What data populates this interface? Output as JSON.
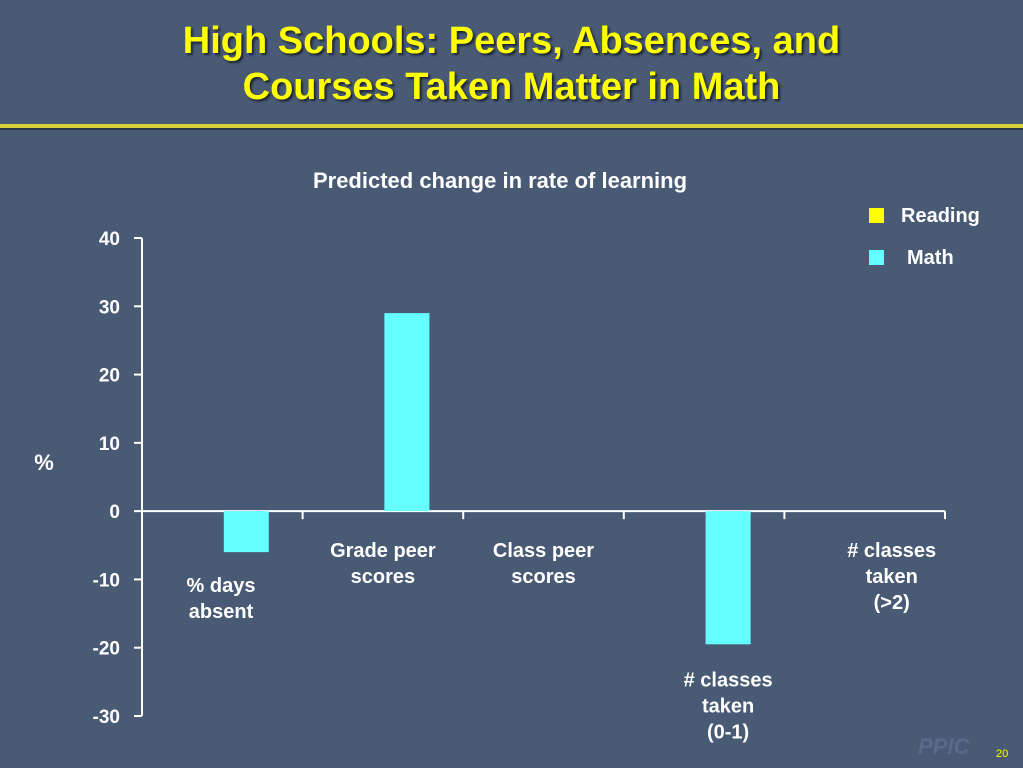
{
  "slide": {
    "title_line1": "High Schools:  Peers, Absences, and",
    "title_line2": "Courses Taken Matter in Math",
    "logo": "PPIC",
    "page_number": "20"
  },
  "colors": {
    "background": "#495a75",
    "title": "#ffff00",
    "reading": "#ffff00",
    "math": "#66ffff",
    "axis": "#ffffff"
  },
  "chart_data": {
    "type": "bar",
    "title": "Predicted change in rate of learning",
    "ylabel": "%",
    "xlabel": "",
    "ylim": [
      -30,
      40
    ],
    "yticks": [
      40,
      30,
      20,
      10,
      0,
      -10,
      -20,
      -30
    ],
    "categories": [
      [
        "% days",
        "absent"
      ],
      [
        "Grade peer",
        "scores"
      ],
      [
        "Class peer",
        "scores"
      ],
      [
        "# classes",
        "taken",
        "(0-1)"
      ],
      [
        "# classes",
        "taken",
        "(>2)"
      ]
    ],
    "series": [
      {
        "name": "Reading",
        "color": "#ffff00",
        "values": [
          null,
          null,
          null,
          null,
          null
        ]
      },
      {
        "name": "Math",
        "color": "#66ffff",
        "values": [
          -6,
          29,
          null,
          -19.5,
          null
        ]
      }
    ],
    "legend": {
      "position": "top-right"
    },
    "grid": false
  }
}
